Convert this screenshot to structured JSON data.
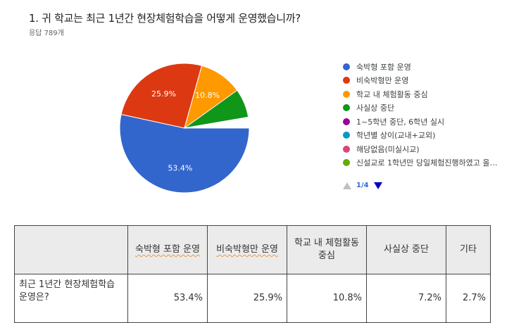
{
  "question": {
    "title": "1. 귀 학교는 최근 1년간 현장체험학습을 어떻게 운영했습니까?",
    "response_count": "응답 789개"
  },
  "legend": {
    "items": [
      {
        "label": "숙박형 포함 운영",
        "color": "#3366cc"
      },
      {
        "label": "비숙박형만 운영",
        "color": "#dc3912"
      },
      {
        "label": "학교 내 체험활동 중심",
        "color": "#ff9900"
      },
      {
        "label": "사실상 중단",
        "color": "#109618"
      },
      {
        "label": "1~5학년 중단, 6학년 실시",
        "color": "#990099"
      },
      {
        "label": "학년별 상이(교내+교외)",
        "color": "#0099c6"
      },
      {
        "label": "해당없음(미실시교)",
        "color": "#dd4477"
      },
      {
        "label": "신설교로 1학년만 당일체험진행하였고 올…",
        "color": "#66aa00"
      }
    ],
    "pager": "1/4"
  },
  "chart_data": {
    "type": "pie",
    "title": "1. 귀 학교는 최근 1년간 현장체험학습을 어떻게 운영했습니까?",
    "subtitle": "응답 789개",
    "categories": [
      "숙박형 포함 운영",
      "비숙박형만 운영",
      "학교 내 체험활동 중심",
      "사실상 중단",
      "기타"
    ],
    "values": [
      53.4,
      25.9,
      10.8,
      7.2,
      2.7
    ],
    "colors": [
      "#3366cc",
      "#dc3912",
      "#ff9900",
      "#109618",
      "#ffffff"
    ],
    "slice_labels": [
      "53.4%",
      "25.9%",
      "10.8%",
      "",
      ""
    ],
    "legend_position": "right"
  },
  "table": {
    "corner": "",
    "headers": [
      "숙박형 포함 운영",
      "비숙박형만 운영",
      "학교 내 체험활동 중심",
      "사실상 중단",
      "기타"
    ],
    "row_header": "최근 1년간 현장체험학습 운영은?",
    "values": [
      "53.4%",
      "25.9%",
      "10.8%",
      "7.2%",
      "2.7%"
    ]
  }
}
